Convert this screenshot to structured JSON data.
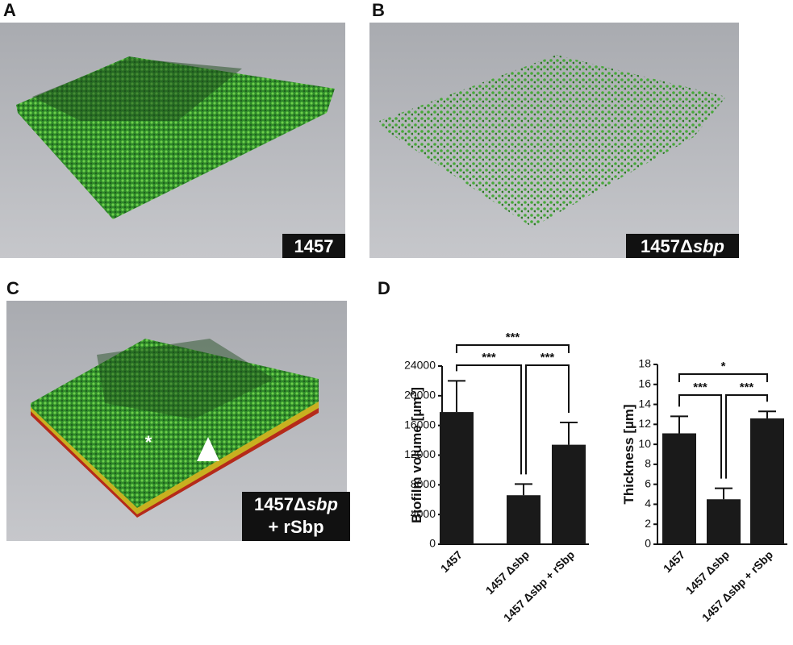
{
  "panels": {
    "a": "A",
    "b": "B",
    "c": "C",
    "d": "D"
  },
  "images": {
    "a": {
      "caption": [
        "1457"
      ]
    },
    "b": {
      "caption": [
        "1457Δ",
        "sbp"
      ]
    },
    "c": {
      "caption": [
        "1457Δ",
        "sbp",
        "+ rSbp"
      ],
      "marker": "*"
    }
  },
  "chart_data": [
    {
      "type": "bar",
      "ylabel": [
        "Biofilm volume [µm",
        "3",
        "]"
      ],
      "categories": [
        "1457",
        "1457 Δsbp",
        "1457 Δsbp + rSbp"
      ],
      "values": [
        17800,
        6600,
        13400
      ],
      "errors": [
        4200,
        1500,
        3000
      ],
      "color": "#1a1a1a",
      "ylim": [
        0,
        24000
      ],
      "yticks": [
        0,
        4000,
        8000,
        12000,
        16000,
        20000,
        24000
      ],
      "significance": [
        "***",
        "***",
        "***"
      ]
    },
    {
      "type": "bar",
      "ylabel": [
        "Thickness [µm]"
      ],
      "categories": [
        "1457",
        "1457 Δsbp",
        "1457 Δsbp + rSbp"
      ],
      "values": [
        11.1,
        4.5,
        12.6
      ],
      "errors": [
        1.7,
        1.1,
        0.7
      ],
      "color": "#1a1a1a",
      "ylim": [
        0,
        18
      ],
      "yticks": [
        0,
        2,
        4,
        6,
        8,
        10,
        12,
        14,
        16,
        18
      ],
      "significance": [
        "***",
        "***",
        "*"
      ]
    }
  ]
}
